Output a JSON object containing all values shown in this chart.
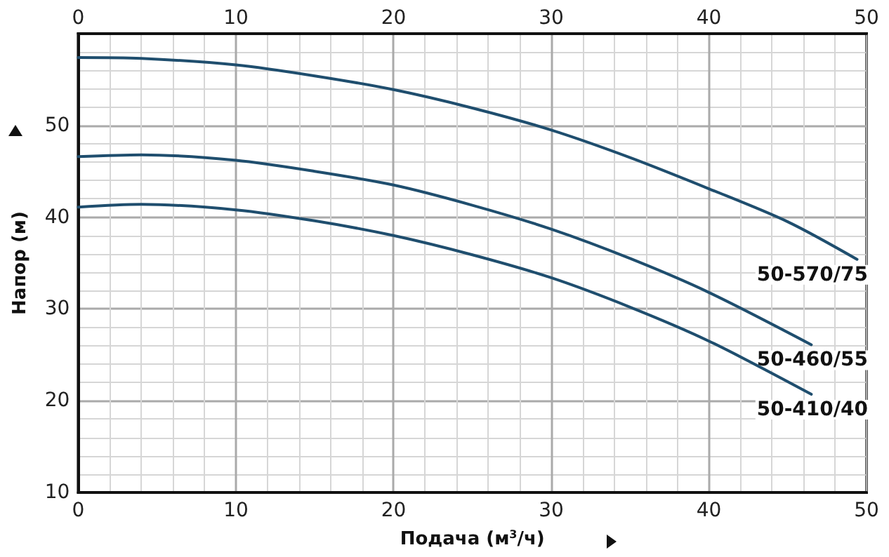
{
  "chart_data": {
    "type": "line",
    "xlabel": "Подача (м$^{3}$/ч)",
    "ylabel": "Напор (м)",
    "xlim": [
      0,
      50
    ],
    "xticks": [
      0,
      10,
      20,
      30,
      40,
      50
    ],
    "x2lim": [
      0,
      50
    ],
    "x2ticks": [
      0,
      10,
      20,
      30,
      40,
      50
    ],
    "ylim": [
      10,
      60
    ],
    "yticks": [
      10,
      20,
      30,
      40,
      50
    ],
    "grid": true,
    "legend": false,
    "marker": "none",
    "line_style": "solid",
    "series": [
      {
        "name": "50-570/75",
        "color": "#1f4e6e",
        "x": [
          0,
          4,
          10,
          15,
          20,
          25,
          30,
          35,
          40,
          45,
          49.4
        ],
        "values": [
          57.4,
          57.3,
          56.6,
          55.4,
          53.9,
          51.9,
          49.5,
          46.5,
          43.1,
          39.5,
          35.4
        ]
      },
      {
        "name": "50-460/55",
        "color": "#1f4e6e",
        "x": [
          0,
          4,
          10,
          15,
          20,
          25,
          30,
          35,
          40,
          46.5
        ],
        "values": [
          46.6,
          46.8,
          46.2,
          45.0,
          43.5,
          41.3,
          38.7,
          35.5,
          31.8,
          26.1
        ]
      },
      {
        "name": "50-410/40",
        "color": "#1f4e6e",
        "x": [
          0,
          4,
          10,
          15,
          20,
          25,
          30,
          35,
          40,
          46.5
        ],
        "values": [
          41.1,
          41.4,
          40.8,
          39.6,
          38.0,
          35.9,
          33.4,
          30.2,
          26.5,
          20.7
        ]
      }
    ]
  }
}
